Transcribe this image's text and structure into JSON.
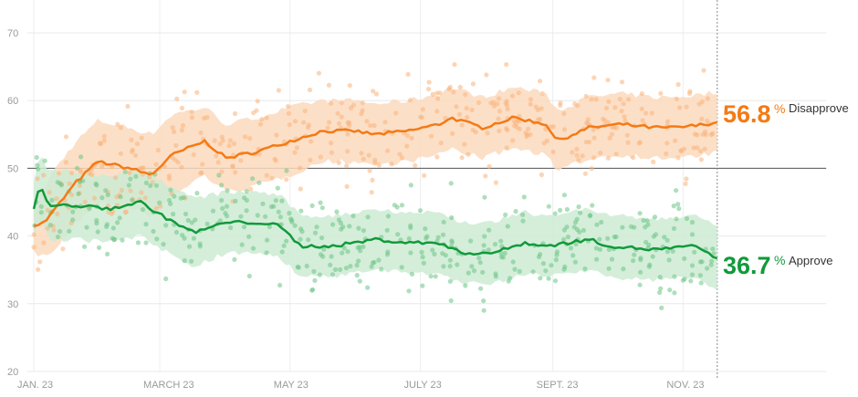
{
  "chart_data": {
    "type": "line",
    "title": "",
    "xlabel": "",
    "ylabel": "",
    "ylim": [
      20,
      70
    ],
    "yticks": [
      20,
      30,
      40,
      50,
      60,
      70
    ],
    "ytick_labels": [
      "20",
      "30",
      "40",
      "50",
      "60",
      "70"
    ],
    "xticks": [
      {
        "label": "JAN. 23",
        "day": 0
      },
      {
        "label": "MARCH 23",
        "day": 59
      },
      {
        "label": "MAY 23",
        "day": 120
      },
      {
        "label": "JULY 23",
        "day": 181
      },
      {
        "label": "SEPT. 23",
        "day": 243
      },
      {
        "label": "NOV. 23",
        "day": 304
      }
    ],
    "xlim_days": [
      0,
      371
    ],
    "current_day": 320,
    "reference_line": 50,
    "grid": true,
    "series": [
      {
        "name": "Disapprove",
        "color": "#f47a14",
        "final_value": "56.8",
        "days": [
          0,
          5,
          10,
          20,
          30,
          45,
          55,
          65,
          80,
          90,
          105,
          120,
          135,
          150,
          160,
          175,
          190,
          195,
          210,
          225,
          240,
          245,
          260,
          275,
          290,
          300,
          310,
          320
        ],
        "values": [
          41.5,
          42,
          44,
          48,
          51,
          50,
          49,
          52,
          54,
          51.5,
          52.5,
          54,
          55.5,
          55.5,
          55,
          55.5,
          56.5,
          57.5,
          56,
          57.5,
          56.5,
          54,
          56,
          56.5,
          56,
          56,
          56.3,
          56.8
        ],
        "band_halfwidth": [
          4,
          5,
          6,
          6,
          6,
          6,
          6,
          6,
          5,
          5,
          5,
          5,
          4.5,
          4.5,
          4.5,
          4.5,
          4.5,
          4.5,
          4.5,
          4.5,
          4.5,
          4.5,
          4.5,
          4.5,
          4.5,
          4.5,
          4.5,
          4.5
        ]
      },
      {
        "name": "Approve",
        "color": "#109a3a",
        "final_value": "36.7",
        "days": [
          0,
          3,
          7,
          20,
          35,
          50,
          60,
          75,
          90,
          105,
          115,
          125,
          140,
          160,
          175,
          190,
          200,
          215,
          230,
          240,
          260,
          270,
          290,
          310,
          320
        ],
        "values": [
          44,
          47.5,
          44.5,
          44.5,
          44,
          45,
          43,
          40.5,
          42,
          42,
          41.5,
          38.5,
          38.5,
          39.5,
          39,
          39,
          37.5,
          37.5,
          39,
          38.5,
          39.5,
          38.5,
          38,
          38.5,
          36.7
        ],
        "band_halfwidth": [
          4,
          5,
          5,
          5,
          5,
          5,
          5,
          5,
          4.5,
          4.5,
          4.5,
          4.5,
          4.5,
          4.5,
          4.5,
          4.5,
          4.5,
          4.5,
          4.5,
          4.5,
          4.5,
          4.5,
          4.5,
          4.5,
          4.5
        ]
      }
    ],
    "annotations": [
      {
        "series": "Disapprove",
        "value": "56.8",
        "unit": "%",
        "label": "Disapprove"
      },
      {
        "series": "Approve",
        "value": "36.7",
        "unit": "%",
        "label": "Approve"
      }
    ]
  }
}
